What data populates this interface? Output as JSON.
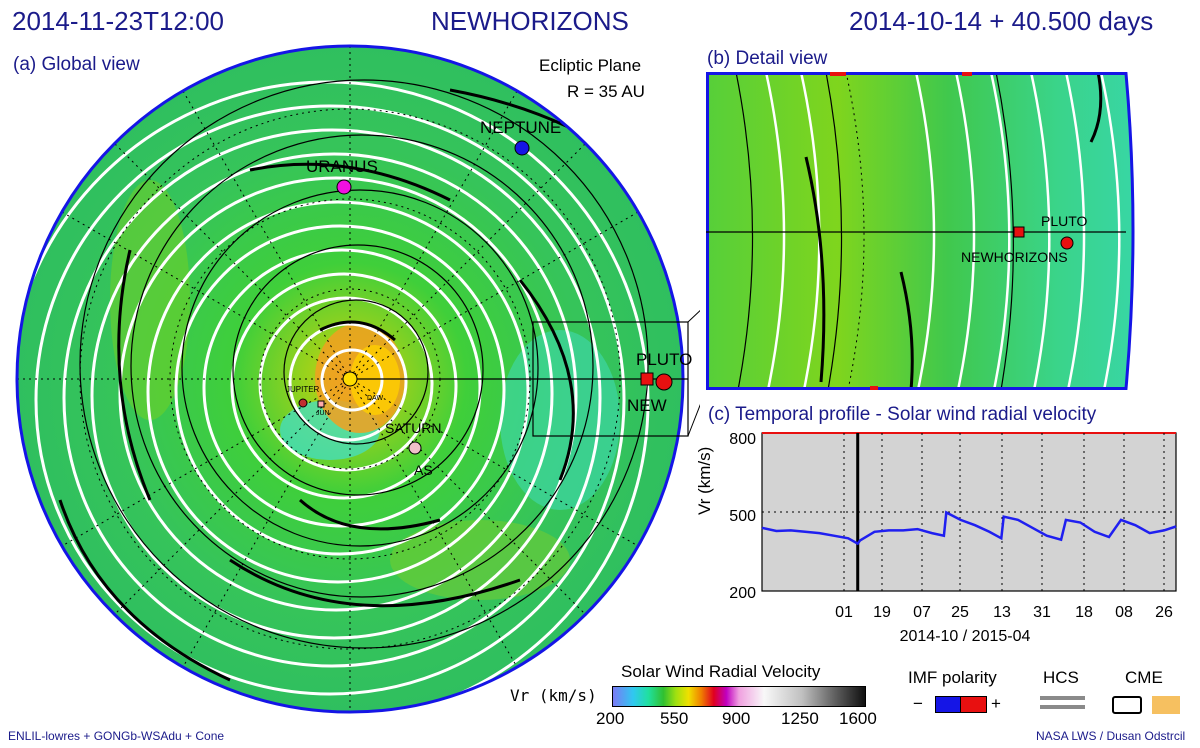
{
  "header": {
    "timestamp": "2014-11-23T12:00",
    "mission": "NEWHORIZONS",
    "elapsed": "2014-10-14 + 40.500 days"
  },
  "global_view": {
    "title": "(a) Global view",
    "plane": "Ecliptic Plane",
    "radius": "R = 35 AU",
    "labels": {
      "neptune": "NEPTUNE",
      "uranus": "URANUS",
      "pluto": "PLUTO",
      "new": "NEW",
      "saturn": "SATURN",
      "jupiter": "JUPITER",
      "juno": "JUN",
      "dawn": "DAW",
      "as": "AS"
    }
  },
  "detail_view": {
    "title": "(b) Detail view",
    "labels": {
      "pluto": "PLUTO",
      "newhorizons": "NEWHORIZONS"
    }
  },
  "temporal": {
    "title": "(c) Temporal profile - Solar wind radial velocity",
    "ylabel": "Vr (km/s)",
    "yticks": [
      "800",
      "500",
      "200"
    ],
    "xticks": [
      "01",
      "19",
      "07",
      "25",
      "13",
      "31",
      "18",
      "08",
      "26"
    ],
    "xlabel": "2014-10 / 2015-04"
  },
  "chart_data": {
    "type": "line",
    "title": "(c) Temporal profile - Solar wind radial velocity",
    "xlabel": "2014-10 / 2015-04",
    "ylabel": "Vr (km/s)",
    "ylim": [
      200,
      800
    ],
    "grid": true,
    "xticks": [
      "01",
      "19",
      "07",
      "25",
      "13",
      "31",
      "18",
      "08",
      "26"
    ],
    "current_time_marker": "2014-11-23",
    "series": [
      {
        "color": "#1f1ff0",
        "x": [
          "2014-10-14",
          "2014-10-20",
          "2014-10-26",
          "2014-11-01",
          "2014-11-07",
          "2014-11-13",
          "2014-11-19",
          "2014-11-23",
          "2014-11-24",
          "2014-11-30",
          "2014-12-06",
          "2014-12-12",
          "2014-12-18",
          "2014-12-24",
          "2014-12-29",
          "2014-12-30",
          "2015-01-05",
          "2015-01-11",
          "2015-01-17",
          "2015-01-22",
          "2015-01-23",
          "2015-01-29",
          "2015-02-04",
          "2015-02-10",
          "2015-02-16",
          "2015-02-18",
          "2015-02-24",
          "2015-03-02",
          "2015-03-08",
          "2015-03-13",
          "2015-03-19",
          "2015-03-25",
          "2015-03-31",
          "2015-04-05"
        ],
        "values": [
          440,
          428,
          430,
          425,
          420,
          410,
          400,
          380,
          392,
          425,
          430,
          430,
          435,
          420,
          410,
          498,
          470,
          450,
          425,
          400,
          482,
          470,
          440,
          410,
          395,
          470,
          460,
          425,
          405,
          470,
          450,
          420,
          430,
          445
        ]
      }
    ]
  },
  "colorbar": {
    "title": "Solar Wind Radial Velocity",
    "unit": "Vr (km/s)",
    "ticks": [
      "200",
      "550",
      "900",
      "1250",
      "1600"
    ]
  },
  "legend": {
    "imf": "IMF polarity",
    "minus": "−",
    "plus": "+",
    "hcs": "HCS",
    "cme": "CME"
  },
  "footer": {
    "left": "ENLIL-lowres + GONGb-WSAdu + Cone",
    "right": "NASA LWS / Dusan Odstrcil"
  }
}
